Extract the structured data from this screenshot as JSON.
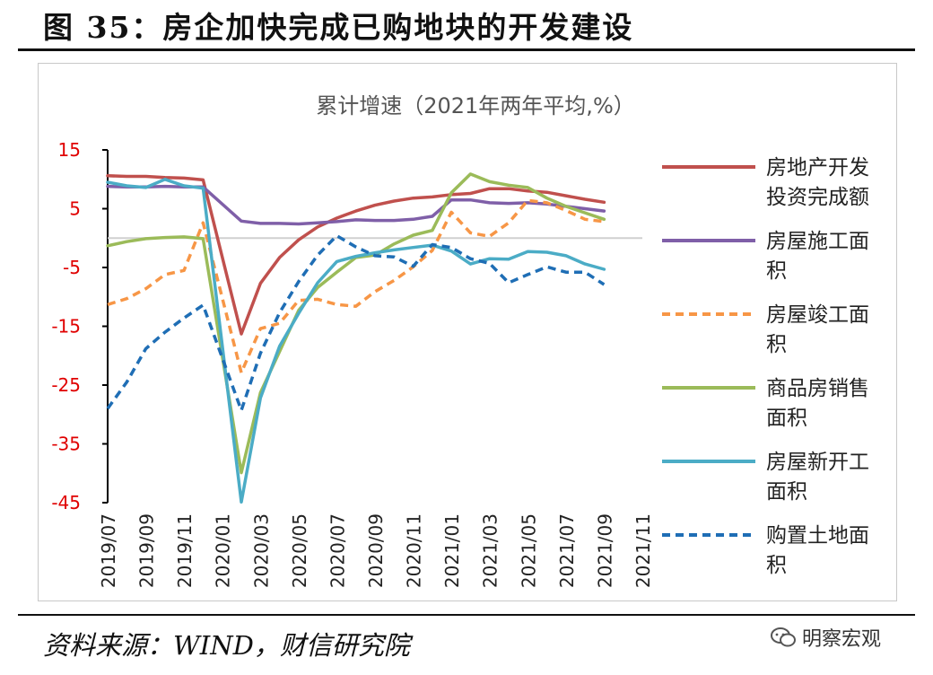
{
  "figure": {
    "title": "图 35：房企加快完成已购地块的开发建设",
    "source": "资料来源：WIND，财信研究院",
    "watermark": "明察宏观",
    "watermark_icon": "wechat-icon"
  },
  "chart_data": {
    "type": "line",
    "title": "累计增速（2021年两年平均,%）",
    "xlabel": "",
    "ylabel": "",
    "ylim": [
      -45,
      15
    ],
    "yticks": [
      15,
      5,
      -5,
      -15,
      -25,
      -35,
      -45
    ],
    "reference_line": 0,
    "x_labels": [
      "2019/07",
      "2019/09",
      "2019/11",
      "2020/01",
      "2020/03",
      "2020/05",
      "2020/07",
      "2020/09",
      "2020/11",
      "2021/01",
      "2021/03",
      "2021/05",
      "2021/07",
      "2021/09",
      "2021/11"
    ],
    "x": [
      "2019/07",
      "2019/08",
      "2019/09",
      "2019/10",
      "2019/11",
      "2019/12",
      "2020/01",
      "2020/02",
      "2020/03",
      "2020/04",
      "2020/05",
      "2020/06",
      "2020/07",
      "2020/08",
      "2020/09",
      "2020/10",
      "2020/11",
      "2020/12",
      "2021/01",
      "2021/02",
      "2021/03",
      "2021/04",
      "2021/05",
      "2021/06",
      "2021/07",
      "2021/08",
      "2021/09",
      "2021/10",
      "2021/11"
    ],
    "legend_position": "right",
    "series": [
      {
        "name": "房地产开发投资完成额",
        "color": "#c0504d",
        "dash": false,
        "values": [
          10.6,
          10.5,
          10.5,
          10.3,
          10.2,
          9.9,
          null,
          -16.3,
          -7.7,
          -3.3,
          -0.3,
          1.9,
          3.4,
          4.6,
          5.6,
          6.3,
          6.8,
          7.0,
          7.4,
          7.6,
          8.4,
          8.4,
          8.0,
          7.8,
          7.2,
          6.6,
          6.1,
          null,
          null
        ]
      },
      {
        "name": "房屋施工面积",
        "color": "#7f5fa8",
        "dash": false,
        "values": [
          8.8,
          8.7,
          8.7,
          8.8,
          8.7,
          8.7,
          null,
          2.9,
          2.5,
          2.5,
          2.4,
          2.6,
          2.8,
          3.1,
          3.0,
          3.0,
          3.2,
          3.7,
          6.5,
          6.5,
          6.0,
          5.9,
          6.0,
          5.8,
          5.4,
          5.0,
          4.6,
          null,
          null
        ]
      },
      {
        "name": "房屋竣工面积",
        "color": "#f79646",
        "dash": true,
        "values": [
          -11.3,
          -10.3,
          -8.6,
          -6.2,
          -5.5,
          2.6,
          null,
          -22.9,
          -15.4,
          -14.5,
          -10.6,
          -10.4,
          -11.3,
          -11.6,
          -9.1,
          -7.2,
          -4.9,
          -2.1,
          4.4,
          0.9,
          0.3,
          2.6,
          6.4,
          6.0,
          4.7,
          3.2,
          2.8,
          null,
          null
        ]
      },
      {
        "name": "商品房销售面积",
        "color": "#9bbb59",
        "dash": false,
        "values": [
          -1.3,
          -0.6,
          -0.1,
          0.1,
          0.2,
          -0.1,
          null,
          -39.9,
          -26.3,
          -19.3,
          -12.3,
          -8.4,
          -5.8,
          -3.3,
          -2.9,
          -1.0,
          0.5,
          1.3,
          7.7,
          10.9,
          9.6,
          9.0,
          8.6,
          6.8,
          5.4,
          4.3,
          3.2,
          null,
          null
        ]
      },
      {
        "name": "房屋新开工面积",
        "color": "#4bacc6",
        "dash": false,
        "values": [
          9.5,
          8.9,
          8.6,
          10.0,
          8.9,
          8.5,
          null,
          -44.9,
          -27.2,
          -18.4,
          -12.8,
          -7.6,
          -4.0,
          -3.1,
          -2.5,
          -2.0,
          -1.6,
          -1.2,
          -2.2,
          -4.4,
          -3.5,
          -3.6,
          -2.3,
          -2.4,
          -3.0,
          -4.4,
          -5.3,
          null,
          null
        ]
      },
      {
        "name": "购置土地面积",
        "color": "#1f6eb5",
        "dash": true,
        "values": [
          -29.0,
          -24.5,
          -18.8,
          -16.0,
          -13.6,
          -11.4,
          null,
          -29.3,
          -19.6,
          -12.7,
          -7.4,
          -2.9,
          0.4,
          -1.5,
          -3.0,
          -3.2,
          -4.8,
          -1.1,
          -1.6,
          -3.5,
          -4.3,
          -7.6,
          -6.2,
          -4.9,
          -5.8,
          -5.8,
          -7.9,
          null,
          null
        ]
      }
    ]
  }
}
